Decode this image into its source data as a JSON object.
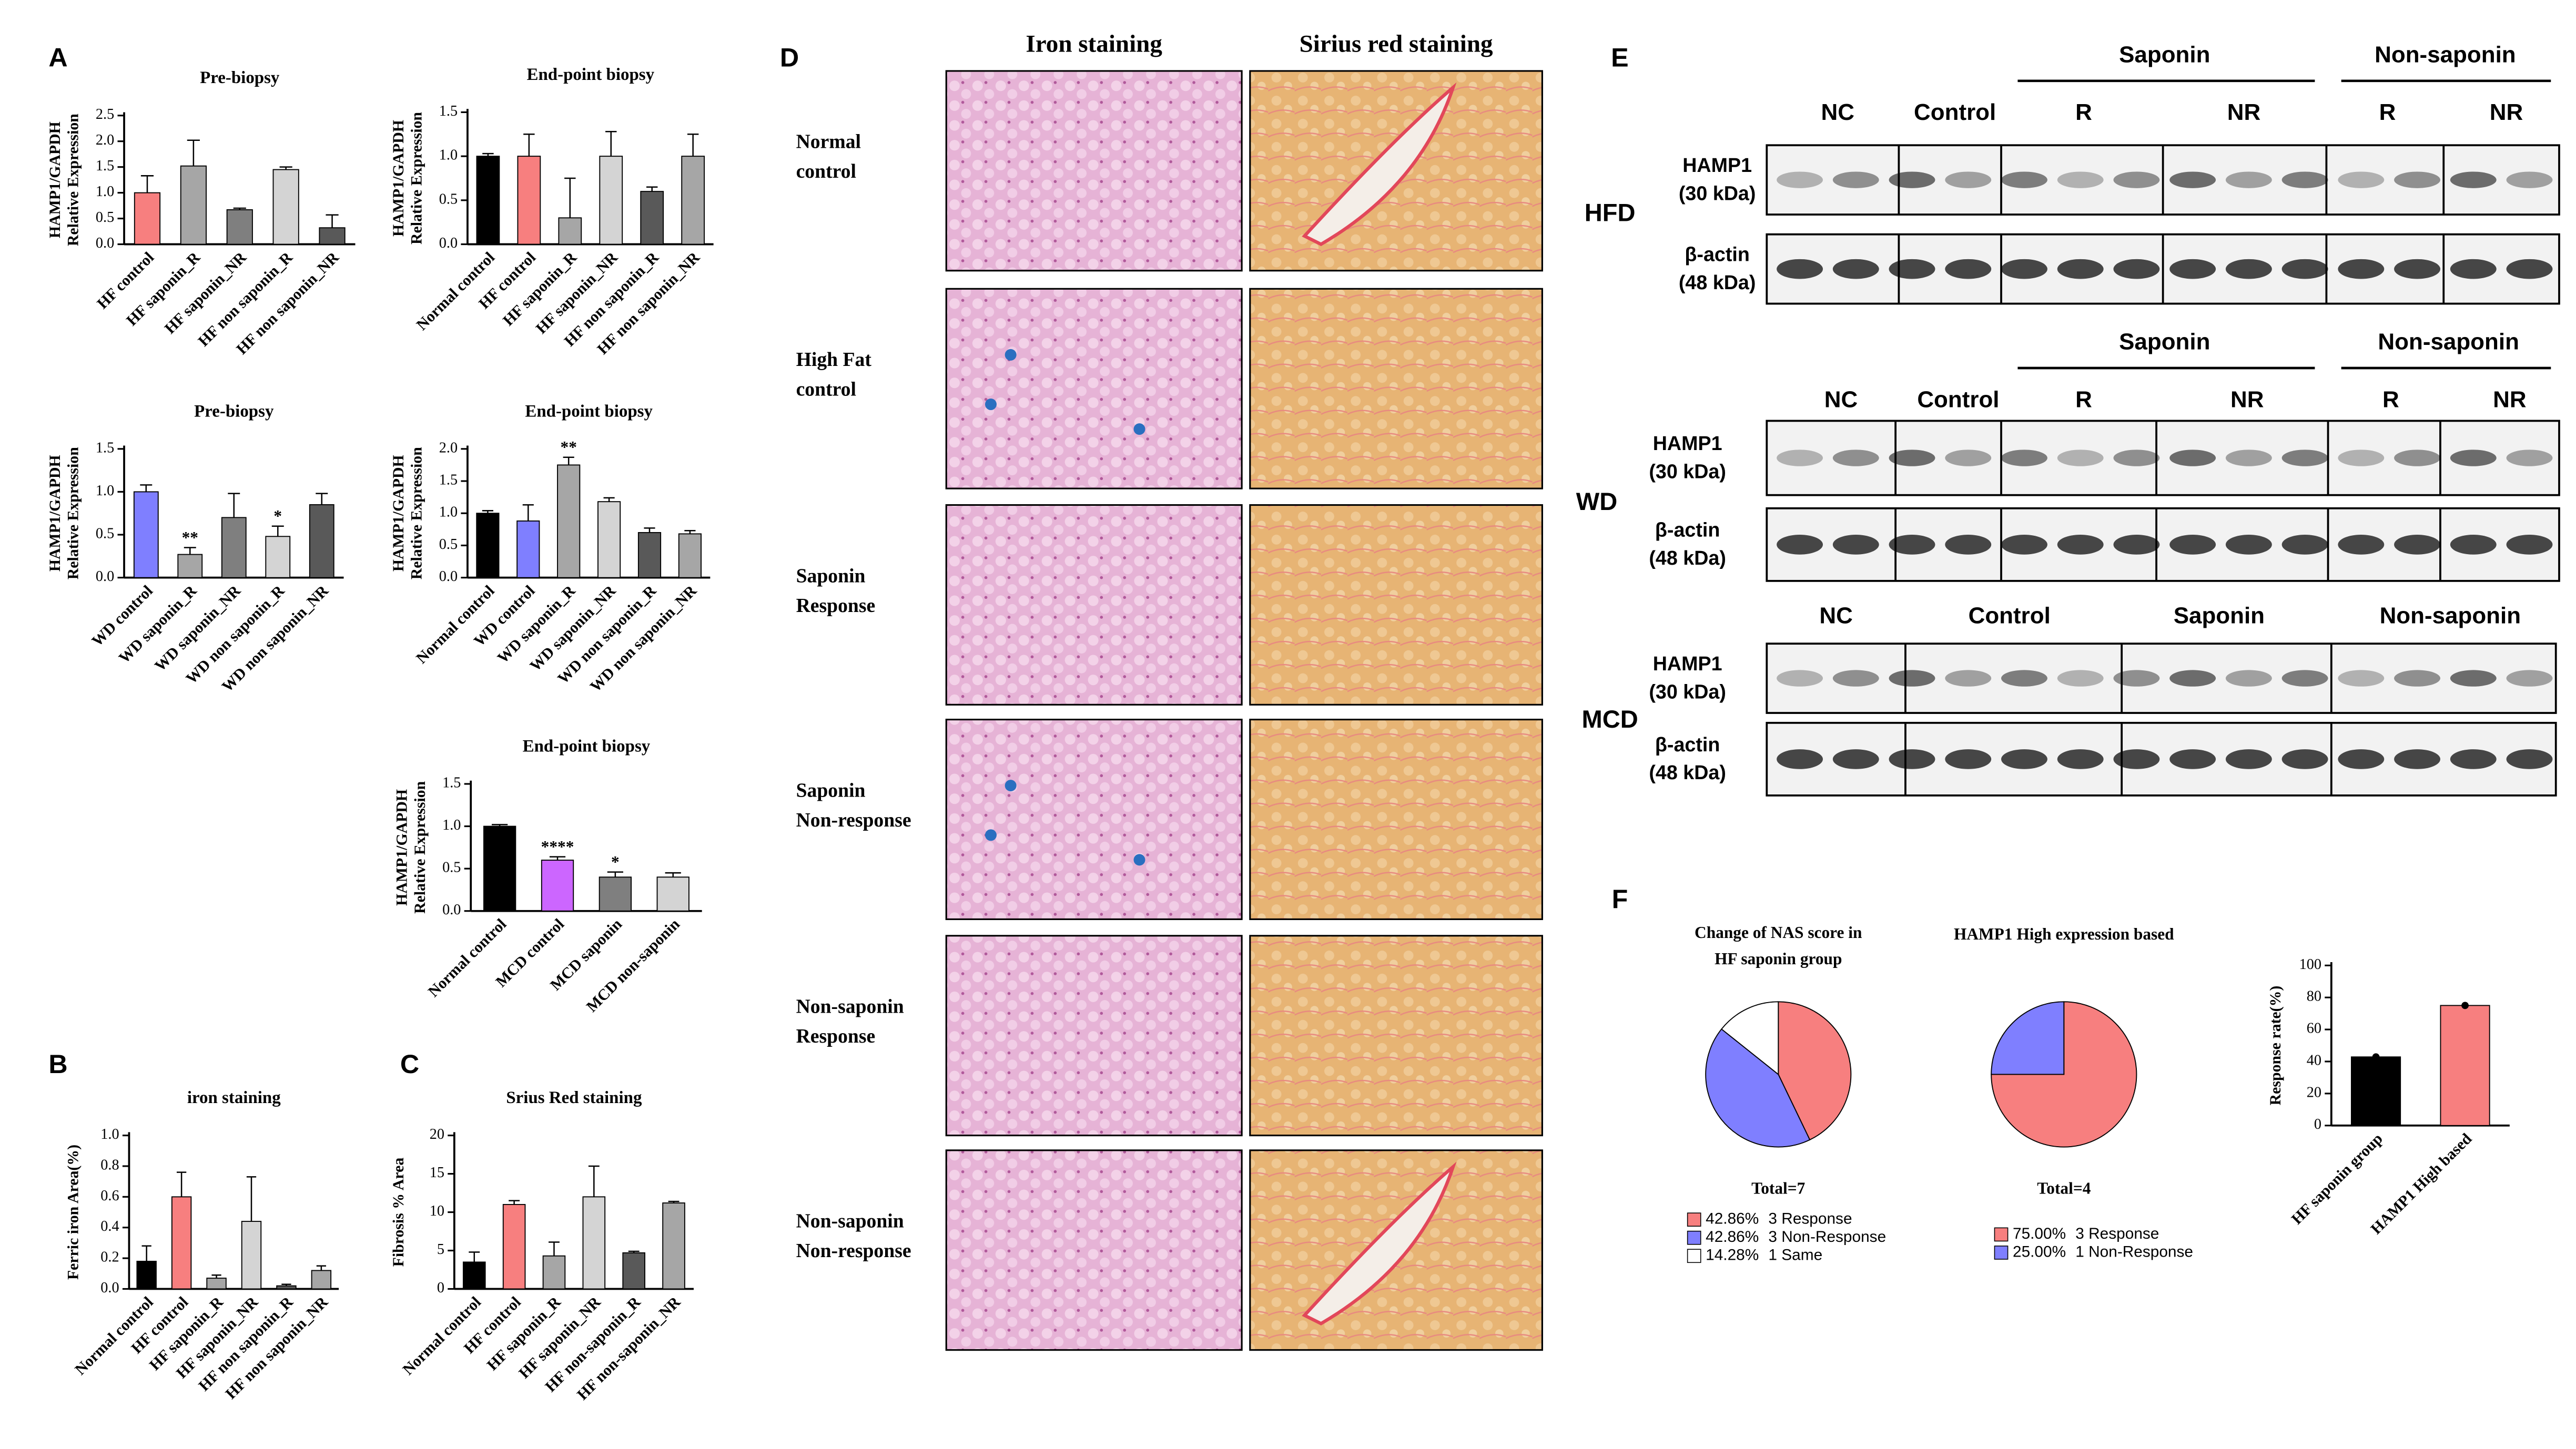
{
  "panel_labels": [
    "A",
    "B",
    "C",
    "D",
    "E",
    "F"
  ],
  "histology": {
    "columns": [
      "Iron staining",
      "Sirius red staining"
    ],
    "rows": [
      [
        "Normal",
        "control"
      ],
      [
        "High Fat",
        "control"
      ],
      [
        "Saponin",
        "Response"
      ],
      [
        "Saponin",
        "Non-response"
      ],
      [
        "Non-saponin",
        "Response"
      ],
      [
        "Non-saponin",
        "Non-response"
      ]
    ]
  },
  "blots": [
    {
      "group": "HFD",
      "headers": [
        "Saponin",
        "Non-saponin"
      ],
      "lanes": [
        "NC",
        "Control",
        "R",
        "NR",
        "R",
        "NR"
      ],
      "rows": [
        [
          "HAMP1",
          "(30 kDa)"
        ],
        [
          "β-actin",
          "(48 kDa)"
        ]
      ]
    },
    {
      "group": "WD",
      "headers": [
        "Saponin",
        "Non-saponin"
      ],
      "lanes": [
        "NC",
        "Control",
        "R",
        "NR",
        "R",
        "NR"
      ],
      "rows": [
        [
          "HAMP1",
          "(30 kDa)"
        ],
        [
          "β-actin",
          "(48 kDa)"
        ]
      ]
    },
    {
      "group": "MCD",
      "headers": [],
      "lanes": [
        "NC",
        "Control",
        "Saponin",
        "Non-saponin"
      ],
      "rows": [
        [
          "HAMP1",
          "(30 kDa)"
        ],
        [
          "β-actin",
          "(48 kDa)"
        ]
      ]
    }
  ],
  "chart_data": [
    {
      "type": "bar",
      "title": "Pre-biopsy",
      "ylabel": [
        "HAMP1/GAPDH",
        "Relative Expression"
      ],
      "categories": [
        "HF control",
        "HF saponin_R",
        "HF saponin_NR",
        "HF non saponin_R",
        "HF non saponin_NR"
      ],
      "values": [
        1.0,
        1.52,
        0.67,
        1.45,
        0.32
      ],
      "errors": [
        0.33,
        0.5,
        0.03,
        0.05,
        0.25
      ],
      "colors": [
        "#f77f7f",
        "#a6a6a6",
        "#7f7f7f",
        "#d4d4d4",
        "#595959"
      ],
      "ylim": [
        0,
        2.5
      ],
      "yticks": [
        {
          "value": 0,
          "label": "0.0"
        },
        0.5,
        {
          "value": 1,
          "label": "1.0"
        },
        1.5,
        {
          "value": 2,
          "label": "2.0"
        },
        2.5
      ]
    },
    {
      "type": "bar",
      "title": "End-point biopsy",
      "ylabel": [
        "HAMP1/GAPDH",
        "Relative Expression"
      ],
      "categories": [
        "Normal control",
        "HF control",
        "HF saponin_R",
        "HF saponin_NR",
        "HF non saponin_R",
        "HF non saponin_NR"
      ],
      "values": [
        1.0,
        1.0,
        0.3,
        1.0,
        0.6,
        1.0
      ],
      "errors": [
        0.03,
        0.25,
        0.45,
        0.28,
        0.05,
        0.25
      ],
      "colors": [
        "#000000",
        "#f77f7f",
        "#a6a6a6",
        "#d4d4d4",
        "#595959",
        "#a6a6a6"
      ],
      "ylim": [
        0,
        1.5
      ],
      "yticks": [
        {
          "value": 0,
          "label": "0.0"
        },
        0.5,
        {
          "value": 1,
          "label": "1.0"
        },
        1.5
      ]
    },
    {
      "type": "bar",
      "title": "Pre-biopsy",
      "ylabel": [
        "HAMP1/GAPDH",
        "Relative Expression"
      ],
      "categories": [
        "WD control",
        "WD saponin_R",
        "WD saponin_NR",
        "WD non saponin_R",
        "WD non saponin_NR"
      ],
      "values": [
        1.0,
        0.27,
        0.7,
        0.48,
        0.85
      ],
      "errors": [
        0.08,
        0.08,
        0.28,
        0.12,
        0.13
      ],
      "annotations": [
        null,
        "**",
        null,
        "*",
        null
      ],
      "colors": [
        "#7f7fff",
        "#a6a6a6",
        "#7f7f7f",
        "#d4d4d4",
        "#595959"
      ],
      "ylim": [
        0,
        1.5
      ],
      "yticks": [
        {
          "value": 0,
          "label": "0.0"
        },
        0.5,
        {
          "value": 1,
          "label": "1.0"
        },
        1.5
      ]
    },
    {
      "type": "bar",
      "title": "End-point biopsy",
      "ylabel": [
        "HAMP1/GAPDH",
        "Relative Expression"
      ],
      "categories": [
        "Normal control",
        "WD control",
        "WD saponin_R",
        "WD saponin_NR",
        "WD non saponin_R",
        "WD non saponin_NR"
      ],
      "values": [
        1.0,
        0.88,
        1.75,
        1.18,
        0.7,
        0.68
      ],
      "errors": [
        0.04,
        0.25,
        0.12,
        0.06,
        0.07,
        0.05
      ],
      "annotations": [
        null,
        null,
        "**",
        null,
        null,
        null
      ],
      "colors": [
        "#000000",
        "#7f7fff",
        "#a6a6a6",
        "#d4d4d4",
        "#595959",
        "#a6a6a6"
      ],
      "ylim": [
        0,
        2.0
      ],
      "yticks": [
        {
          "value": 0,
          "label": "0.0"
        },
        0.5,
        {
          "value": 1,
          "label": "1.0"
        },
        1.5,
        {
          "value": 2,
          "label": "2.0"
        }
      ]
    },
    {
      "type": "bar",
      "title": "End-point biopsy",
      "ylabel": [
        "HAMP1/GAPDH",
        "Relative Expression"
      ],
      "categories": [
        "Normal control",
        "MCD control",
        "MCD saponin",
        "MCD non-saponin"
      ],
      "values": [
        1.0,
        0.6,
        0.4,
        0.4
      ],
      "errors": [
        0.02,
        0.04,
        0.06,
        0.05
      ],
      "annotations": [
        null,
        "****",
        "*",
        null
      ],
      "colors": [
        "#000000",
        "#cc66ff",
        "#7f7f7f",
        "#d4d4d4"
      ],
      "ylim": [
        0,
        1.5
      ],
      "yticks": [
        {
          "value": 0,
          "label": "0.0"
        },
        0.5,
        {
          "value": 1,
          "label": "1.0"
        },
        1.5
      ]
    },
    {
      "type": "bar",
      "title": "iron staining",
      "ylabel": "Ferric iron Area(%)",
      "categories": [
        "Normal control",
        "HF control",
        "HF saponin_R",
        "HF saponin_NR",
        "HF non saponin_R",
        "HF non saponin_NR"
      ],
      "values": [
        0.18,
        0.6,
        0.07,
        0.44,
        0.02,
        0.12
      ],
      "errors": [
        0.1,
        0.16,
        0.02,
        0.29,
        0.01,
        0.03
      ],
      "colors": [
        "#000000",
        "#f77f7f",
        "#a6a6a6",
        "#d4d4d4",
        "#595959",
        "#a6a6a6"
      ],
      "ylim": [
        0,
        1.0
      ],
      "yticks": [
        {
          "value": 0,
          "label": "0.0"
        },
        0.2,
        0.4,
        0.6,
        0.8,
        {
          "value": 1,
          "label": "1.0"
        }
      ]
    },
    {
      "type": "bar",
      "title": "Srius Red staining",
      "ylabel": "Fibrosis % Area",
      "categories": [
        "Normal control",
        "HF control",
        "HF saponin_R",
        "HF saponin_NR",
        "HF non-saponin_R",
        "HF non-saponin_NR"
      ],
      "values": [
        3.5,
        11,
        4.3,
        12,
        4.7,
        11.2
      ],
      "errors": [
        1.3,
        0.5,
        1.8,
        4,
        0.2,
        0.2
      ],
      "colors": [
        "#000000",
        "#f77f7f",
        "#a6a6a6",
        "#d4d4d4",
        "#595959",
        "#a6a6a6"
      ],
      "ylim": [
        0,
        20
      ],
      "yticks": [
        0,
        5,
        10,
        15,
        20
      ]
    },
    {
      "type": "pie",
      "title": [
        "Change of NAS score in",
        "HF saponin group"
      ],
      "total": "Total=7",
      "categories": [
        "3 Response",
        "3 Non-Response",
        "1 Same"
      ],
      "values": [
        42.86,
        42.86,
        14.28
      ],
      "value_labels": [
        "42.86%",
        "42.86%",
        "14.28%"
      ],
      "colors": [
        "#f77f7f",
        "#7f7fff",
        "#ffffff"
      ]
    },
    {
      "type": "pie",
      "title": [
        "HAMP1 High expression based"
      ],
      "total": "Total=4",
      "categories": [
        "3 Response",
        "1 Non-Response"
      ],
      "values": [
        75,
        25
      ],
      "value_labels": [
        "75.00%",
        "25.00%"
      ],
      "colors": [
        "#f77f7f",
        "#7f7fff"
      ]
    },
    {
      "type": "bar",
      "ylabel": "Response rate(%)",
      "categories": [
        "HF saponin group",
        "HAMP1 High based"
      ],
      "values": [
        42.86,
        75
      ],
      "colors": [
        "#000000",
        "#f77f7f"
      ],
      "dots": true,
      "ylim": [
        0,
        100
      ],
      "yticks": [
        0,
        20,
        40,
        60,
        80,
        100
      ]
    }
  ]
}
